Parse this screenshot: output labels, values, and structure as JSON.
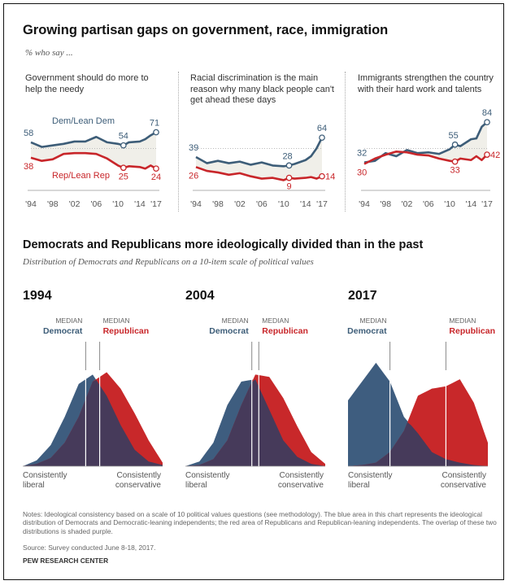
{
  "header": {
    "title": "Growing partisan gaps on government, race, immigration",
    "subtitle": "% who say ..."
  },
  "colors": {
    "dem": "#3d5d78",
    "rep": "#c8262a",
    "overlap": "#463a5a",
    "dem_area": "#3e5d7f",
    "rep_area": "#c8282a",
    "gap_fill": "#f0efe9"
  },
  "section2": {
    "title": "Democrats and Republicans more ideologically divided than in the past",
    "subtitle": "Distribution of Democrats and Republicans on a 10-item scale of political values"
  },
  "chart_data": [
    {
      "type": "line",
      "title": "Government should do more to help the needy",
      "x_tick_labels": [
        "'94",
        "'98",
        "'02",
        "'06",
        "'10",
        "'14",
        "'17"
      ],
      "ylim": [
        0,
        100
      ],
      "series": [
        {
          "name": "Dem/Lean Dem",
          "x": [
            1994,
            1996,
            1998,
            2000,
            2002,
            2004,
            2006,
            2008,
            2010,
            2011,
            2012,
            2014,
            2015,
            2016,
            2017
          ],
          "values": [
            58,
            52,
            54,
            56,
            59,
            59,
            65,
            58,
            56,
            54,
            58,
            59,
            62,
            67,
            71
          ]
        },
        {
          "name": "Rep/Lean Rep",
          "x": [
            1994,
            1996,
            1998,
            2000,
            2002,
            2004,
            2006,
            2008,
            2010,
            2011,
            2012,
            2014,
            2015,
            2016,
            2017
          ],
          "values": [
            38,
            34,
            36,
            43,
            44,
            44,
            43,
            37,
            28,
            25,
            27,
            26,
            24,
            28,
            24
          ]
        }
      ],
      "labels": [
        "58",
        "71",
        "54",
        "38",
        "25",
        "24"
      ]
    },
    {
      "type": "line",
      "title": "Racial discrimination is the main reason why many black people can't get ahead these days",
      "x_tick_labels": [
        "'94",
        "'98",
        "'02",
        "'06",
        "'10",
        "'14",
        "'17"
      ],
      "ylim": [
        0,
        100
      ],
      "series": [
        {
          "name": "Dem",
          "x": [
            1994,
            1996,
            1998,
            2000,
            2002,
            2004,
            2006,
            2008,
            2010,
            2011,
            2012,
            2014,
            2015,
            2016,
            2017
          ],
          "values": [
            39,
            31,
            34,
            31,
            33,
            29,
            32,
            28,
            27,
            28,
            30,
            35,
            40,
            50,
            64
          ]
        },
        {
          "name": "Rep",
          "x": [
            1994,
            1996,
            1998,
            2000,
            2002,
            2004,
            2006,
            2008,
            2010,
            2011,
            2012,
            2014,
            2015,
            2016,
            2017
          ],
          "values": [
            26,
            21,
            19,
            16,
            18,
            14,
            11,
            12,
            9,
            12,
            11,
            12,
            13,
            11,
            14
          ]
        }
      ],
      "labels": [
        "39",
        "64",
        "28",
        "26",
        "9",
        "14"
      ]
    },
    {
      "type": "line",
      "title": "Immigrants strengthen the country with their hard work and talents",
      "x_tick_labels": [
        "'94",
        "'98",
        "'02",
        "'06",
        "'10",
        "'14",
        "'17"
      ],
      "ylim": [
        0,
        100
      ],
      "series": [
        {
          "name": "Dem",
          "x": [
            1994,
            1996,
            1998,
            2000,
            2002,
            2004,
            2006,
            2008,
            2010,
            2011,
            2012,
            2014,
            2015,
            2016,
            2017
          ],
          "values": [
            32,
            34,
            44,
            40,
            48,
            44,
            45,
            43,
            49,
            55,
            53,
            62,
            63,
            78,
            84
          ]
        },
        {
          "name": "Rep",
          "x": [
            1994,
            1996,
            1998,
            2000,
            2002,
            2004,
            2006,
            2008,
            2010,
            2011,
            2012,
            2014,
            2015,
            2016,
            2017
          ],
          "values": [
            30,
            37,
            42,
            46,
            45,
            42,
            41,
            37,
            34,
            33,
            37,
            35,
            40,
            35,
            42
          ]
        }
      ],
      "labels": [
        "32",
        "84",
        "55",
        "30",
        "33",
        "42"
      ]
    },
    {
      "type": "area",
      "panel_title": "1994",
      "median_labels": [
        "MEDIAN",
        "Democrat",
        "MEDIAN",
        "Republican"
      ],
      "axis_labels": [
        "Consistently",
        "liberal",
        "Consistently",
        "conservative"
      ],
      "x": [
        -10,
        -8,
        -6,
        -4,
        -2,
        0,
        2,
        4,
        6,
        8,
        10
      ],
      "series": [
        {
          "name": "Democrat",
          "values": [
            0,
            5,
            18,
            42,
            70,
            78,
            60,
            35,
            14,
            4,
            1
          ]
        },
        {
          "name": "Republican",
          "values": [
            0,
            2,
            7,
            20,
            42,
            72,
            80,
            66,
            45,
            22,
            3
          ]
        }
      ],
      "medians": [
        -1,
        1
      ]
    },
    {
      "type": "area",
      "panel_title": "2004",
      "median_labels": [
        "MEDIAN",
        "Democrat",
        "MEDIAN",
        "Republican"
      ],
      "axis_labels": [
        "Consistently",
        "liberal",
        "Consistently",
        "conservative"
      ],
      "x": [
        -10,
        -8,
        -6,
        -4,
        -2,
        0,
        2,
        4,
        6,
        8,
        10
      ],
      "series": [
        {
          "name": "Democrat",
          "values": [
            0,
            4,
            20,
            52,
            72,
            74,
            48,
            22,
            8,
            2,
            0
          ]
        },
        {
          "name": "Republican",
          "values": [
            0,
            1,
            6,
            22,
            52,
            78,
            76,
            58,
            34,
            12,
            2
          ]
        }
      ],
      "medians": [
        -0.5,
        0.5
      ]
    },
    {
      "type": "area",
      "panel_title": "2017",
      "median_labels": [
        "MEDIAN",
        "Democrat",
        "MEDIAN",
        "Republican"
      ],
      "axis_labels": [
        "Consistently",
        "liberal",
        "Consistently",
        "conservative"
      ],
      "x": [
        -10,
        -8,
        -6,
        -4,
        -2,
        0,
        2,
        4,
        6,
        8,
        10
      ],
      "series": [
        {
          "name": "Democrat",
          "values": [
            56,
            72,
            88,
            72,
            42,
            28,
            12,
            6,
            3,
            1,
            0
          ]
        },
        {
          "name": "Republican",
          "values": [
            0,
            1,
            3,
            12,
            30,
            60,
            66,
            68,
            74,
            54,
            20
          ]
        }
      ],
      "medians": [
        -4,
        4
      ]
    }
  ],
  "footer": {
    "notes": "Notes: Ideological consistency based on a scale of 10 political values questions (see methodology). The blue area in this chart represents the ideological distribution of Democrats and Democratic-leaning independents; the red area of Republicans and Republican-leaning independents. The overlap of these two distributions is shaded purple.",
    "source": "Source: Survey conducted June 8-18, 2017.",
    "org": "PEW RESEARCH CENTER"
  }
}
